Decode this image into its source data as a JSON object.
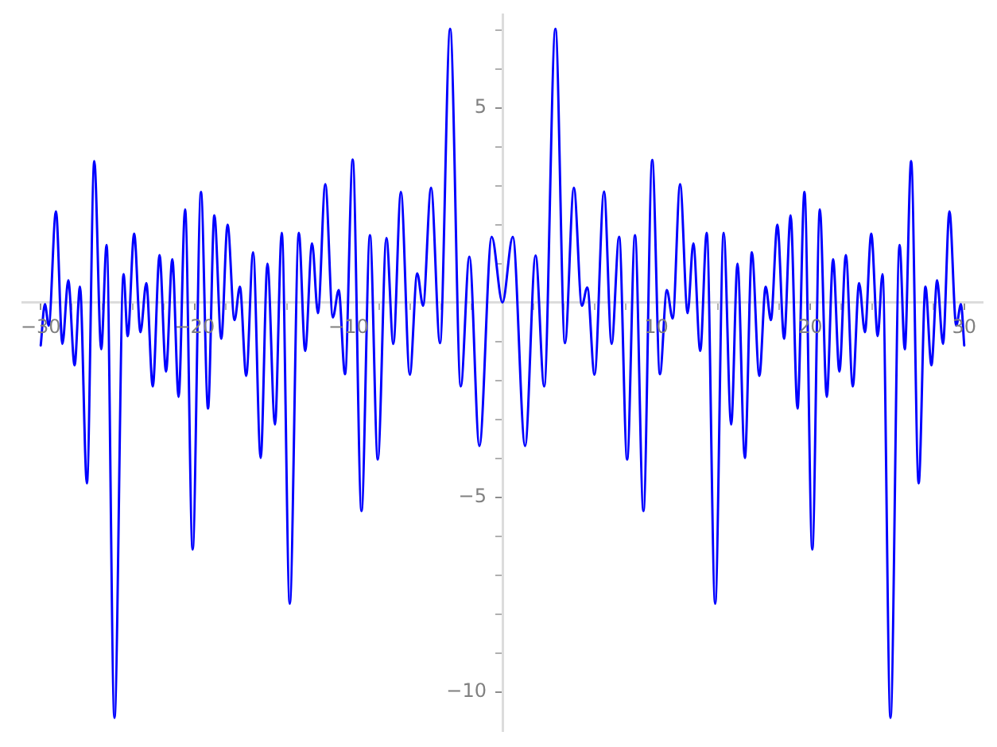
{
  "chart_data": {
    "type": "line",
    "color": "#0000ff",
    "x": [
      -30,
      -29.73,
      -29.48,
      -29.01,
      -28.59,
      -28.21,
      -27.8,
      -27.45,
      -27.0,
      -26.52,
      -26.07,
      -25.72,
      -25.21,
      -24.62,
      -24.35,
      -23.93,
      -23.52,
      -23.14,
      -22.72,
      -22.28,
      -21.86,
      -21.45,
      -21.04,
      -20.62,
      -20.13,
      -19.59,
      -19.13,
      -18.72,
      -18.27,
      -17.86,
      -17.41,
      -17.06,
      -16.65,
      -16.2,
      -15.71,
      -15.27,
      -14.78,
      -14.34,
      -13.82,
      -13.23,
      -12.82,
      -12.37,
      -11.99,
      -11.51,
      -11.02,
      -10.64,
      -10.23,
      -9.73,
      -9.16,
      -8.61,
      -8.1,
      -7.54,
      -7.09,
      -6.6,
      -6.02,
      -5.54,
      -5.16,
      -4.64,
      -4.06,
      -3.4,
      -2.71,
      -2.15,
      -1.5,
      -0.7,
      0,
      0.67,
      1.47,
      2.15,
      2.71,
      3.44,
      4.06,
      4.64,
      5.16,
      5.51,
      5.98,
      6.6,
      7.09,
      7.58,
      8.1,
      8.61,
      9.16,
      9.73,
      10.23,
      10.68,
      11.06,
      11.54,
      12.03,
      12.4,
      12.85,
      13.27,
      13.82,
      14.37,
      14.86,
      15.27,
      15.75,
      16.2,
      16.69,
      17.1,
      17.44,
      17.86,
      18.3,
      18.72,
      19.17,
      19.62,
      20.13,
      20.62,
      21.07,
      21.48,
      21.89,
      22.31,
      22.76,
      23.17,
      23.55,
      23.96,
      24.38,
      24.69,
      25.21,
      25.8,
      26.14,
      26.55,
      27.04,
      27.48,
      27.87,
      28.24,
      28.62,
      29.04,
      29.48,
      29.79,
      30
    ],
    "values": [
      -1.1,
      -0.04,
      -0.59,
      2.34,
      -1.06,
      0.57,
      -1.61,
      0.41,
      -4.64,
      3.63,
      -1.2,
      1.48,
      -10.66,
      0.73,
      -0.86,
      1.77,
      -0.76,
      0.5,
      -2.15,
      1.22,
      -1.77,
      1.11,
      -2.42,
      2.39,
      -6.34,
      2.84,
      -2.72,
      2.24,
      -0.93,
      2.0,
      -0.45,
      0.41,
      -1.88,
      1.29,
      -3.99,
      1.0,
      -3.13,
      1.79,
      -7.73,
      1.79,
      -1.24,
      1.52,
      -0.27,
      3.04,
      -0.38,
      0.32,
      -1.84,
      3.67,
      -5.35,
      1.73,
      -4.03,
      1.66,
      -1.06,
      2.84,
      -1.85,
      0.75,
      -0.08,
      2.95,
      -1.04,
      7.03,
      -2.15,
      1.18,
      -3.68,
      1.69,
      0,
      1.69,
      -3.68,
      1.21,
      -2.15,
      7.03,
      -1.04,
      2.95,
      -0.08,
      0.39,
      -1.85,
      2.85,
      -1.06,
      1.69,
      -4.03,
      1.73,
      -5.35,
      3.66,
      -1.84,
      0.32,
      -0.41,
      3.04,
      -0.27,
      1.52,
      -1.24,
      1.79,
      -7.73,
      1.79,
      -3.13,
      1.0,
      -3.99,
      1.29,
      -1.88,
      0.41,
      -0.45,
      2.0,
      -0.93,
      2.24,
      -2.72,
      2.84,
      -6.34,
      2.39,
      -2.42,
      1.11,
      -1.77,
      1.22,
      -2.15,
      0.5,
      -0.76,
      1.77,
      -0.86,
      0.73,
      -10.66,
      1.48,
      -1.2,
      3.63,
      -4.64,
      0.41,
      -1.61,
      0.57,
      -1.06,
      2.34,
      -0.59,
      -0.04,
      -1.1
    ],
    "xlim": [
      -31.2,
      31.2
    ],
    "ylim": [
      -11,
      7.4
    ],
    "xticks": [
      {
        "value": -30,
        "label": "−30"
      },
      {
        "value": -28,
        "label": null
      },
      {
        "value": -26,
        "label": null
      },
      {
        "value": -24,
        "label": null
      },
      {
        "value": -22,
        "label": null
      },
      {
        "value": -20,
        "label": "−20"
      },
      {
        "value": -18,
        "label": null
      },
      {
        "value": -16,
        "label": null
      },
      {
        "value": -14,
        "label": null
      },
      {
        "value": -12,
        "label": null
      },
      {
        "value": -10,
        "label": "−10"
      },
      {
        "value": -8,
        "label": null
      },
      {
        "value": -6,
        "label": null
      },
      {
        "value": -4,
        "label": null
      },
      {
        "value": -2,
        "label": null
      },
      {
        "value": 2,
        "label": null
      },
      {
        "value": 4,
        "label": null
      },
      {
        "value": 6,
        "label": null
      },
      {
        "value": 8,
        "label": null
      },
      10,
      {
        "value": 12,
        "label": null
      },
      {
        "value": 14,
        "label": null
      },
      {
        "value": 16,
        "label": null
      },
      {
        "value": 18,
        "label": null
      },
      20,
      {
        "value": 22,
        "label": null
      },
      {
        "value": 24,
        "label": null
      },
      {
        "value": 26,
        "label": null
      },
      {
        "value": 28,
        "label": null
      },
      30
    ],
    "yticks": [
      {
        "value": -10,
        "label": "−10"
      },
      {
        "value": -9,
        "label": null
      },
      {
        "value": -8,
        "label": null
      },
      {
        "value": -7,
        "label": null
      },
      {
        "value": -6,
        "label": null
      },
      {
        "value": -5,
        "label": "−5"
      },
      {
        "value": -4,
        "label": null
      },
      {
        "value": -3,
        "label": null
      },
      {
        "value": -2,
        "label": null
      },
      {
        "value": -1,
        "label": null
      },
      {
        "value": 1,
        "label": null
      },
      {
        "value": 2,
        "label": null
      },
      {
        "value": 3,
        "label": null
      },
      {
        "value": 4,
        "label": null
      },
      5,
      {
        "value": 6,
        "label": null
      },
      {
        "value": 7,
        "label": null
      }
    ]
  }
}
